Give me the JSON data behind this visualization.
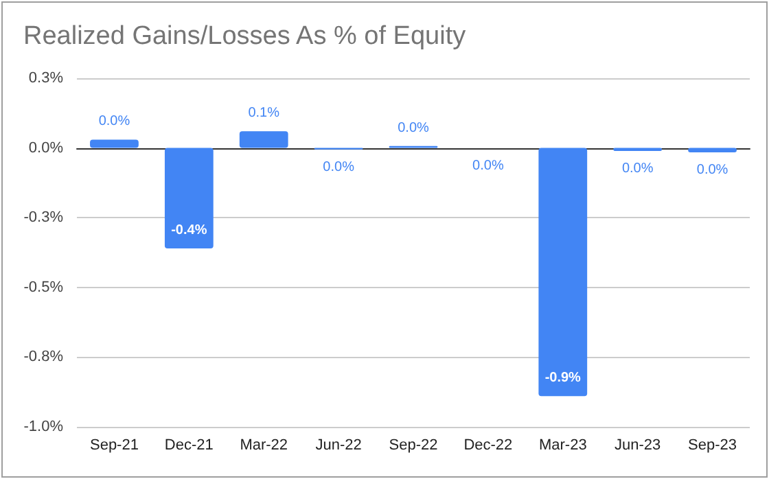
{
  "chart_data": {
    "type": "bar",
    "title": "Realized Gains/Losses As % of Equity",
    "categories": [
      "Sep-21",
      "Dec-21",
      "Mar-22",
      "Jun-22",
      "Sep-22",
      "Dec-22",
      "Mar-23",
      "Jun-23",
      "Sep-23"
    ],
    "series": [
      {
        "color": "#4285f4",
        "values": [
          0.03,
          -0.36,
          0.06,
          -0.005,
          0.007,
          0,
          -0.89,
          -0.011,
          -0.016
        ],
        "value_labels": [
          "0.0%",
          "-0.4%",
          "0.1%",
          "0.0%",
          "0.0%",
          "0.0%",
          "-0.9%",
          "0.0%",
          "0.0%"
        ]
      }
    ],
    "ylim": [
      -1,
      0.25
    ],
    "yticks": [
      {
        "value": -1,
        "label": "-1.0%"
      },
      {
        "value": -0.75,
        "label": "-0.8%"
      },
      {
        "value": -0.5,
        "label": "-0.5%"
      },
      {
        "value": -0.25,
        "label": "-0.3%"
      },
      {
        "value": 0,
        "label": "0.0%"
      },
      {
        "value": 0.25,
        "label": "0.3%"
      }
    ],
    "grid": "y"
  }
}
